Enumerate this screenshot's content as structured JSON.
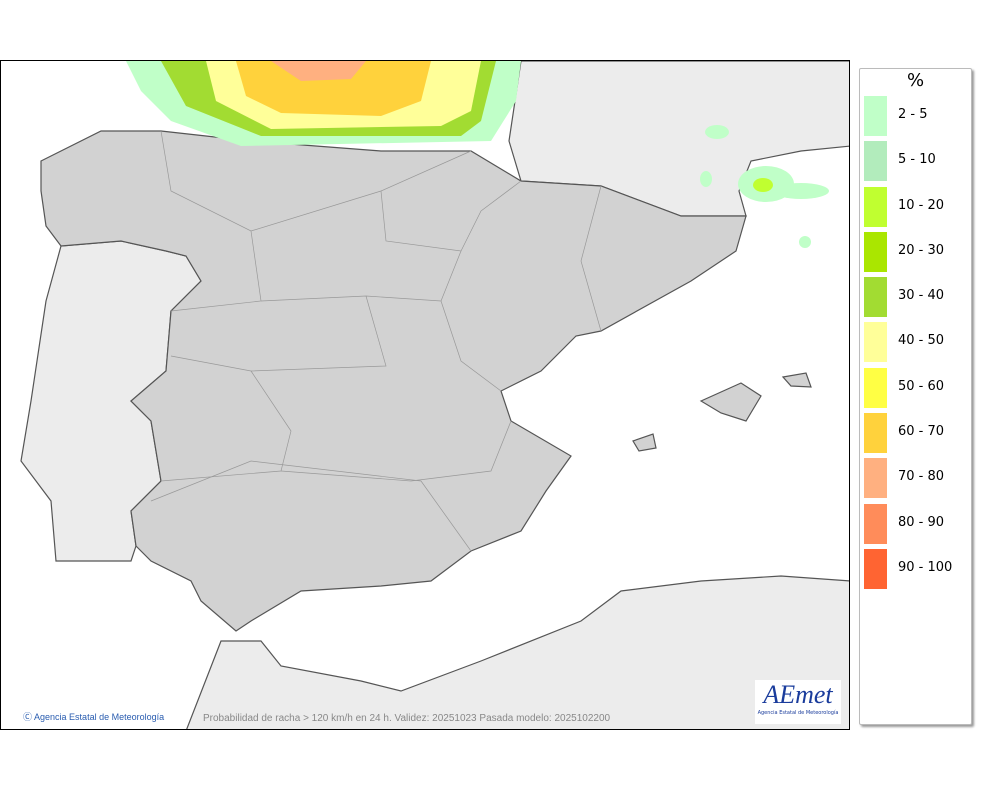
{
  "map": {
    "caption": "Probabilidad de racha > 120 km/h en 24 h. Validez: 20251023 Pasada modelo: 2025102200",
    "credit": "Agencia Estatal de Meteorología",
    "credit_icon": "copyright-icon",
    "logo": {
      "text": "AEmet",
      "subtitle": "Agencia Estatal de Meteorología"
    }
  },
  "legend": {
    "title": "%",
    "items": [
      {
        "label": "2 - 5",
        "color": "#c0ffc8"
      },
      {
        "label": "5 - 10",
        "color": "#b2ecbc"
      },
      {
        "label": "10 - 20",
        "color": "#c0ff30"
      },
      {
        "label": "20 - 30",
        "color": "#aae600"
      },
      {
        "label": "30 - 40",
        "color": "#a2dc32"
      },
      {
        "label": "40 - 50",
        "color": "#ffff99"
      },
      {
        "label": "50 - 60",
        "color": "#ffff44"
      },
      {
        "label": "60 - 70",
        "color": "#ffd23c"
      },
      {
        "label": "70 - 80",
        "color": "#ffb080"
      },
      {
        "label": "80 - 90",
        "color": "#ff8c5a"
      },
      {
        "label": "90 - 100",
        "color": "#ff6432"
      }
    ]
  }
}
